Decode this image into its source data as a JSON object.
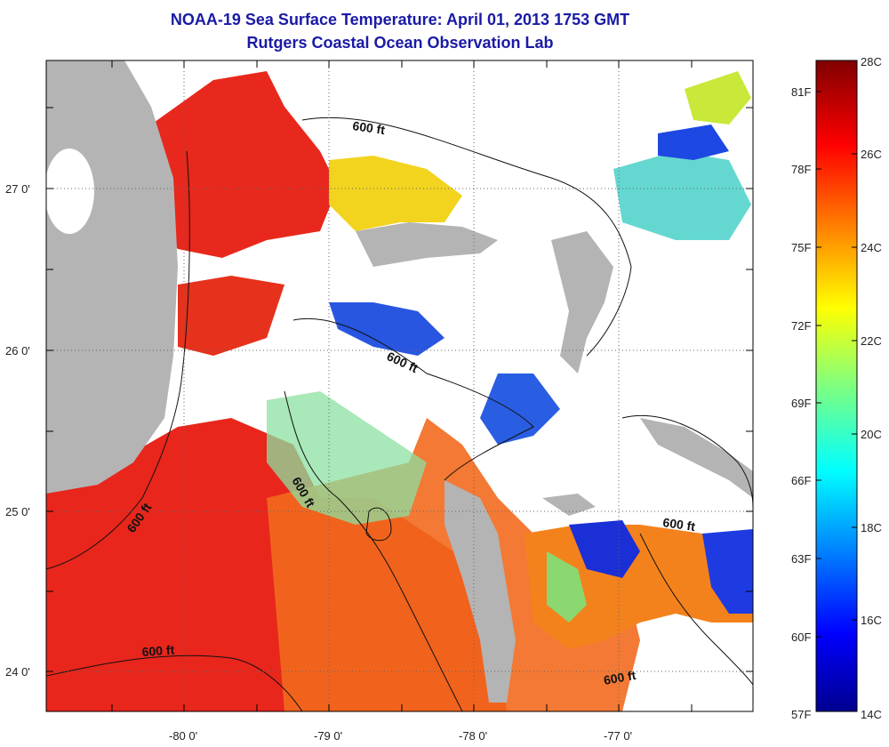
{
  "header": {
    "title": "NOAA-19 Sea Surface Temperature:  April 01, 2013 1753 GMT",
    "subtitle": "Rutgers Coastal Ocean Observation Lab"
  },
  "axes": {
    "x_ticks": [
      "-80 0'",
      "-79 0'",
      "-78 0'",
      "-77 0'"
    ],
    "y_ticks": [
      "27 0'",
      "26 0'",
      "25 0'",
      "24 0'"
    ]
  },
  "contours": {
    "label": "600 ft"
  },
  "colorbar": {
    "f_labels": [
      "81F",
      "78F",
      "75F",
      "72F",
      "69F",
      "66F",
      "63F",
      "60F",
      "57F"
    ],
    "c_labels": [
      "28C",
      "26C",
      "24C",
      "22C",
      "20C",
      "18C",
      "16C",
      "14C"
    ]
  },
  "colors": {
    "title": "#1a1aa6",
    "land": "#b4b4b4",
    "warm": "#e8221a",
    "orange": "#f47a1c",
    "cool": "#1e3fd8"
  }
}
